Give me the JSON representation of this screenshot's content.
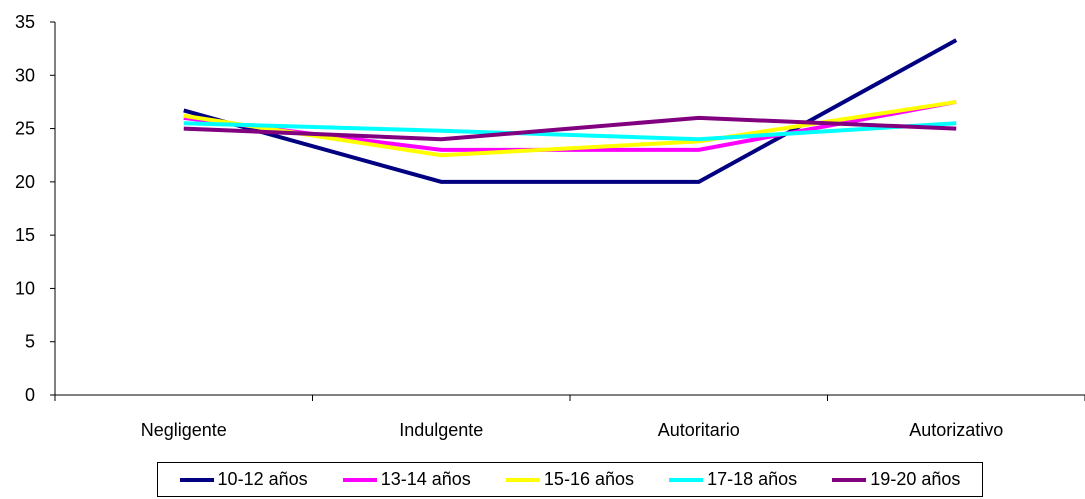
{
  "chart_data": {
    "type": "line",
    "categories": [
      "Negligente",
      "Indulgente",
      "Autoritario",
      "Autorizativo"
    ],
    "ylim": [
      0,
      35
    ],
    "yticks": [
      0,
      5,
      10,
      15,
      20,
      25,
      30,
      35
    ],
    "grid": false,
    "legend_position": "bottom",
    "series": [
      {
        "name": "10-12 años",
        "color": "#000080",
        "values": [
          26.7,
          20,
          20,
          33.3
        ]
      },
      {
        "name": "13-14 años",
        "color": "#FF00FF",
        "values": [
          26.0,
          23,
          23,
          27.5
        ]
      },
      {
        "name": "15-16 años",
        "color": "#FFFF00",
        "values": [
          26.2,
          22.5,
          23.8,
          27.5
        ]
      },
      {
        "name": "17-18 años",
        "color": "#00FFFF",
        "values": [
          25.5,
          24.8,
          24.0,
          25.5
        ]
      },
      {
        "name": "19-20 años",
        "color": "#800080",
        "values": [
          25.0,
          24.0,
          26.0,
          25.0
        ]
      }
    ]
  }
}
